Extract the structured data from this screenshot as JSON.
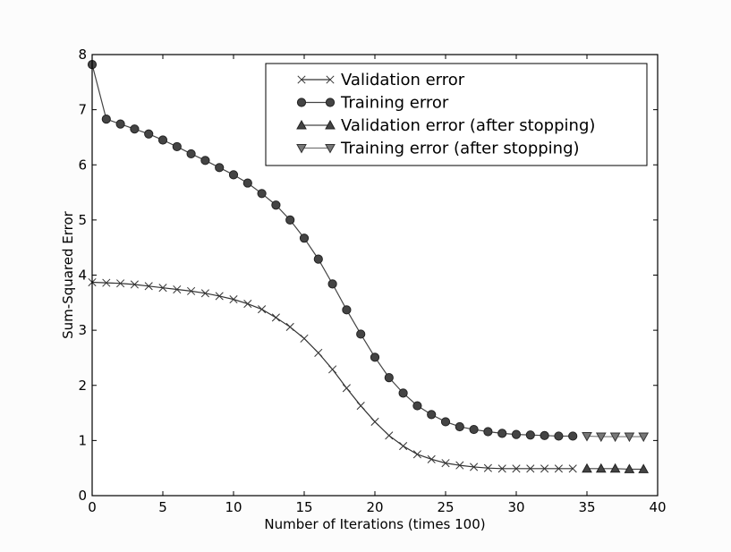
{
  "chart_data": {
    "type": "line",
    "title": "",
    "xlabel": "Number of Iterations (times 100)",
    "ylabel": "Sum-Squared Error",
    "xlim": [
      0,
      40
    ],
    "ylim": [
      0,
      8
    ],
    "xticks": [
      0,
      5,
      10,
      15,
      20,
      25,
      30,
      35,
      40
    ],
    "yticks": [
      0,
      1,
      2,
      3,
      4,
      5,
      6,
      7,
      8
    ],
    "grid": false,
    "legend_position": "top-right",
    "series": [
      {
        "name": "Validation error",
        "marker": "x",
        "color": "#333333",
        "x": [
          0,
          1,
          2,
          3,
          4,
          5,
          6,
          7,
          8,
          9,
          10,
          11,
          12,
          13,
          14,
          15,
          16,
          17,
          18,
          19,
          20,
          21,
          22,
          23,
          24,
          25,
          26,
          27,
          28,
          29,
          30,
          31,
          32,
          33,
          34
        ],
        "y": [
          3.87,
          3.86,
          3.85,
          3.83,
          3.8,
          3.77,
          3.74,
          3.71,
          3.67,
          3.62,
          3.56,
          3.48,
          3.38,
          3.23,
          3.06,
          2.85,
          2.59,
          2.29,
          1.95,
          1.63,
          1.34,
          1.09,
          0.9,
          0.75,
          0.66,
          0.59,
          0.55,
          0.52,
          0.5,
          0.49,
          0.49,
          0.49,
          0.49,
          0.49,
          0.49
        ]
      },
      {
        "name": "Training error",
        "marker": "o",
        "color": "#444444",
        "x": [
          0,
          1,
          2,
          3,
          4,
          5,
          6,
          7,
          8,
          9,
          10,
          11,
          12,
          13,
          14,
          15,
          16,
          17,
          18,
          19,
          20,
          21,
          22,
          23,
          24,
          25,
          26,
          27,
          28,
          29,
          30,
          31,
          32,
          33,
          34
        ],
        "y": [
          7.82,
          6.83,
          6.74,
          6.65,
          6.56,
          6.45,
          6.33,
          6.2,
          6.08,
          5.95,
          5.82,
          5.67,
          5.48,
          5.27,
          5.0,
          4.67,
          4.29,
          3.84,
          3.37,
          2.93,
          2.51,
          2.14,
          1.86,
          1.63,
          1.47,
          1.34,
          1.25,
          1.2,
          1.16,
          1.13,
          1.11,
          1.1,
          1.09,
          1.08,
          1.08
        ]
      },
      {
        "name": "Validation error (after stopping)",
        "marker": "^",
        "color": "#444444",
        "x": [
          35,
          36,
          37,
          38,
          39
        ],
        "y": [
          0.49,
          0.49,
          0.49,
          0.48,
          0.48
        ]
      },
      {
        "name": "Training error (after stopping)",
        "marker": "v",
        "color": "#777777",
        "x": [
          35,
          36,
          37,
          38,
          39
        ],
        "y": [
          1.08,
          1.07,
          1.07,
          1.07,
          1.07
        ]
      }
    ]
  }
}
